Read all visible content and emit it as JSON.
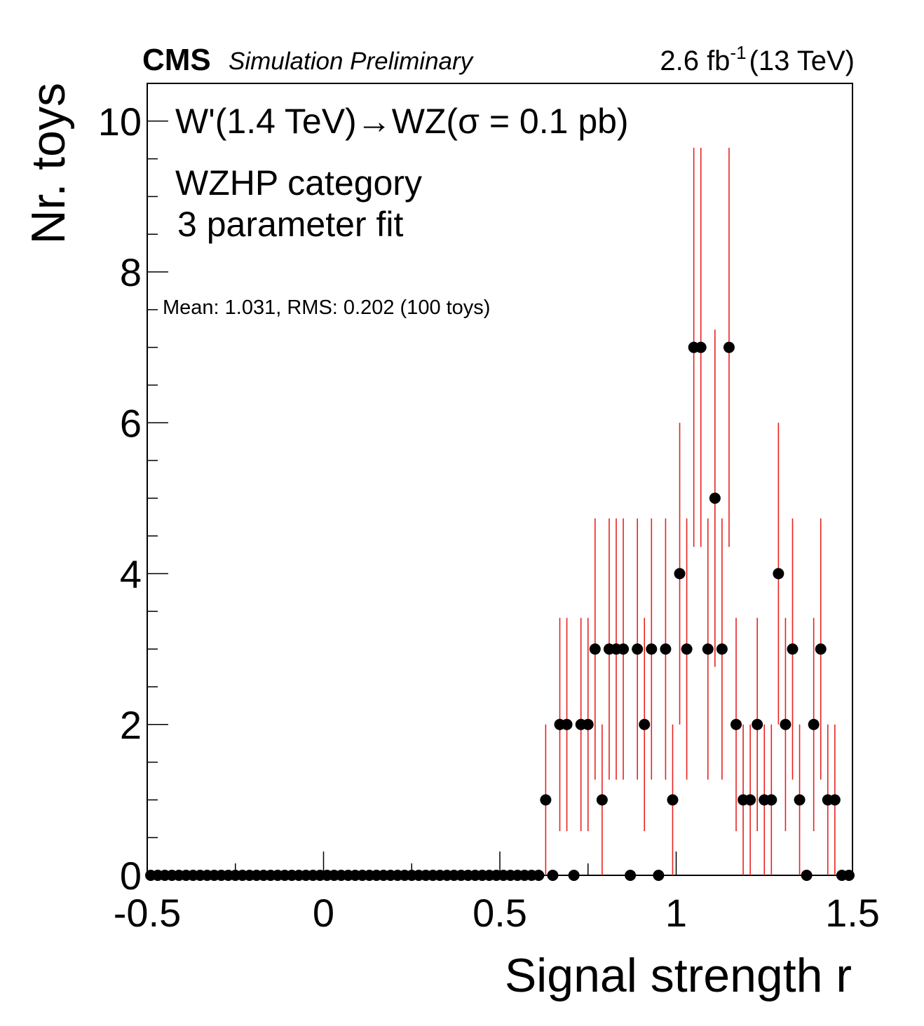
{
  "header": {
    "cms": "CMS",
    "sim": "Simulation Preliminary",
    "lumi_value": "2.6 fb",
    "lumi_exp": "-1",
    "lumi_energy": "(13 TeV)"
  },
  "legend": {
    "line1": "W'(1.4 TeV)→WZ(σ = 0.1 pb)",
    "line2": "WZHP category",
    "line3": "3 parameter fit"
  },
  "stats": "Mean: 1.031, RMS: 0.202 (100 toys)",
  "chart_data": {
    "type": "scatter",
    "xlabel": "Signal strength r",
    "ylabel": "Nr. toys",
    "xlim": [
      -0.5,
      1.5
    ],
    "ylim": [
      0,
      10.5
    ],
    "x_ticks": [
      "-0.5",
      "0",
      "0.5",
      "1",
      "1.5"
    ],
    "y_ticks": [
      "0",
      "2",
      "4",
      "6",
      "8",
      "10"
    ],
    "bin_width": 0.02,
    "bin_start": -0.5,
    "series": [
      {
        "values": [
          0,
          0,
          0,
          0,
          0,
          0,
          0,
          0,
          0,
          0,
          0,
          0,
          0,
          0,
          0,
          0,
          0,
          0,
          0,
          0,
          0,
          0,
          0,
          0,
          0,
          0,
          0,
          0,
          0,
          0,
          0,
          0,
          0,
          0,
          0,
          0,
          0,
          0,
          0,
          0,
          0,
          0,
          0,
          0,
          0,
          0,
          0,
          0,
          0,
          0,
          0,
          0,
          0,
          0,
          0,
          0,
          1,
          0,
          2,
          2,
          0,
          2,
          2,
          3,
          1,
          3,
          3,
          3,
          0,
          3,
          2,
          3,
          0,
          3,
          1,
          4,
          3,
          7,
          7,
          3,
          5,
          3,
          7,
          2,
          1,
          1,
          2,
          1,
          1,
          4,
          2,
          3,
          1,
          0,
          2,
          3,
          1,
          1,
          0,
          0
        ]
      }
    ],
    "marker_color": "#000000",
    "error_color": "#e8221e"
  }
}
